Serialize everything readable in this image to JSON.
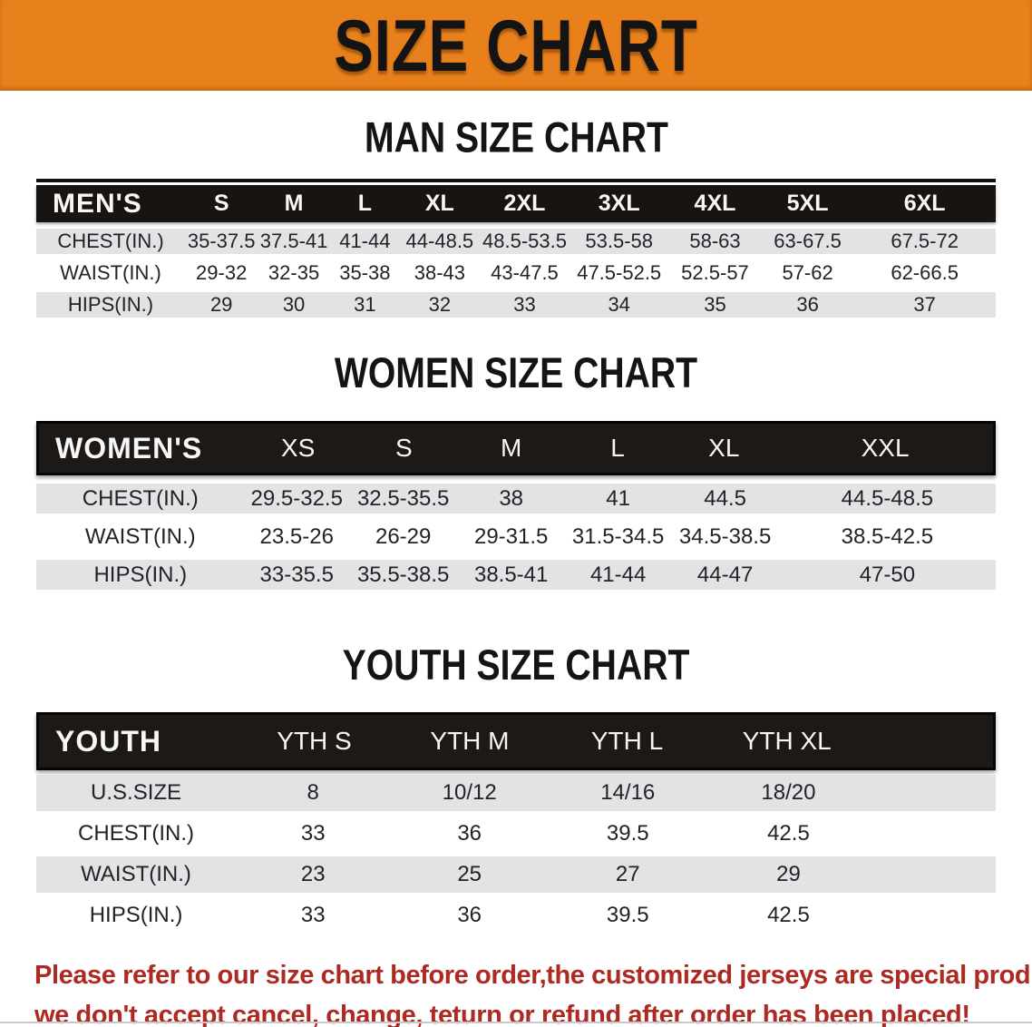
{
  "banner": {
    "title": "SIZE CHART"
  },
  "colors": {
    "banner_bg": "#E8811C",
    "band_bg": "#171411",
    "row_gray": "#E3E3E5",
    "red": "#AC2A22"
  },
  "sections": [
    {
      "heading": "MAN SIZE CHART",
      "table": {
        "header_label": "MEN'S",
        "columns": [
          "S",
          "M",
          "L",
          "XL",
          "2XL",
          "3XL",
          "4XL",
          "5XL",
          "6XL"
        ],
        "rows": [
          {
            "label": "CHEST(IN.)",
            "values": [
              "35-37.5",
              "37.5-41",
              "41-44",
              "44-48.5",
              "48.5-53.5",
              "53.5-58",
              "58-63",
              "63-67.5",
              "67.5-72"
            ]
          },
          {
            "label": "WAIST(IN.)",
            "values": [
              "29-32",
              "32-35",
              "35-38",
              "38-43",
              "43-47.5",
              "47.5-52.5",
              "52.5-57",
              "57-62",
              "62-66.5"
            ]
          },
          {
            "label": "HIPS(IN.)",
            "values": [
              "29",
              "30",
              "31",
              "32",
              "33",
              "34",
              "35",
              "36",
              "37"
            ]
          }
        ]
      }
    },
    {
      "heading": "WOMEN SIZE CHART",
      "table": {
        "header_label": "WOMEN'S",
        "columns": [
          "XS",
          "S",
          "M",
          "L",
          "XL",
          "XXL"
        ],
        "rows": [
          {
            "label": "CHEST(IN.)",
            "values": [
              "29.5-32.5",
              "32.5-35.5",
              "38",
              "41",
              "44.5",
              "44.5-48.5"
            ]
          },
          {
            "label": "WAIST(IN.)",
            "values": [
              "23.5-26",
              "26-29",
              "29-31.5",
              "31.5-34.5",
              "34.5-38.5",
              "38.5-42.5"
            ]
          },
          {
            "label": "HIPS(IN.)",
            "values": [
              "33-35.5",
              "35.5-38.5",
              "38.5-41",
              "41-44",
              "44-47",
              "47-50"
            ]
          }
        ]
      }
    },
    {
      "heading": "YOUTH SIZE CHART",
      "table": {
        "header_label": "YOUTH",
        "columns": [
          "YTH S",
          "YTH M",
          "YTH L",
          "YTH XL"
        ],
        "rows": [
          {
            "label": "U.S.SIZE",
            "values": [
              "8",
              "10/12",
              "14/16",
              "18/20"
            ]
          },
          {
            "label": "CHEST(IN.)",
            "values": [
              "33",
              "36",
              "39.5",
              "42.5"
            ]
          },
          {
            "label": "WAIST(IN.)",
            "values": [
              "23",
              "25",
              "27",
              "29"
            ]
          },
          {
            "label": "HIPS(IN.)",
            "values": [
              "33",
              "36",
              "39.5",
              "42.5"
            ]
          }
        ]
      }
    }
  ],
  "disclaimer": {
    "line1": "Please refer to our size chart before order,the customized jerseys are special products,",
    "line2": "we don't accept cancel, change, teturn or refund after order has been placed!"
  }
}
